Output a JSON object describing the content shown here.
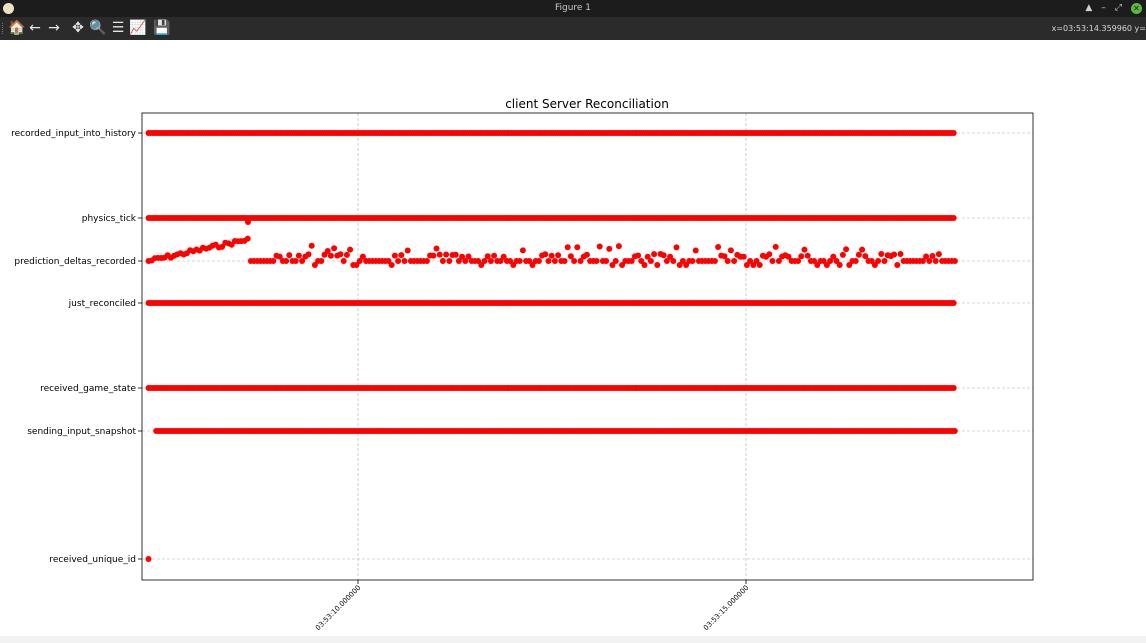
{
  "window": {
    "title": "Figure 1",
    "controls": [
      "▲",
      "–",
      "⤢",
      "✕"
    ]
  },
  "toolbar": {
    "tools": [
      {
        "name": "home-icon",
        "glyph": "🏠"
      },
      {
        "name": "back-icon",
        "glyph": "←"
      },
      {
        "name": "forward-icon",
        "glyph": "→"
      },
      {
        "name": "pan-icon",
        "glyph": "✥"
      },
      {
        "name": "zoom-icon",
        "glyph": "🔍"
      },
      {
        "name": "subplots-icon",
        "glyph": "☰"
      },
      {
        "name": "edit-curve-icon",
        "glyph": "📈"
      },
      {
        "name": "save-icon",
        "glyph": "💾"
      }
    ],
    "coords": "x=03:53:14.359960 y="
  },
  "chart_data": {
    "type": "scatter",
    "title": "client Server Reconciliation",
    "xlabel": "",
    "ylabel": "",
    "grid": true,
    "marker_color": "#ff0000",
    "x_ticks": [
      "03:53:10.000000",
      "03:53:15.000000"
    ],
    "y_categories": [
      "received_unique_id",
      "sending_input_snapshot",
      "received_game_state",
      "just_reconciled",
      "prediction_deltas_recorded",
      "physics_tick",
      "recorded_input_into_history"
    ],
    "series": [
      {
        "category": "recorded_input_into_history",
        "x_start": "03:53:07.3",
        "x_end": "03:53:17.7",
        "dense": true
      },
      {
        "category": "physics_tick",
        "x_start": "03:53:07.3",
        "x_end": "03:53:17.7",
        "dense": true
      },
      {
        "category": "just_reconciled",
        "x_start": "03:53:07.3",
        "x_end": "03:53:17.7",
        "dense": true
      },
      {
        "category": "received_game_state",
        "x_start": "03:53:07.3",
        "x_end": "03:53:17.7",
        "dense": true
      },
      {
        "category": "sending_input_snapshot",
        "x_start": "03:53:07.4",
        "x_end": "03:53:17.7",
        "dense": true
      },
      {
        "category": "received_unique_id",
        "x": [
          "03:53:07.3"
        ]
      },
      {
        "category": "prediction_deltas_recorded",
        "x_start": "03:53:07.3",
        "x_end": "03:53:17.7",
        "jitter": true
      }
    ]
  }
}
